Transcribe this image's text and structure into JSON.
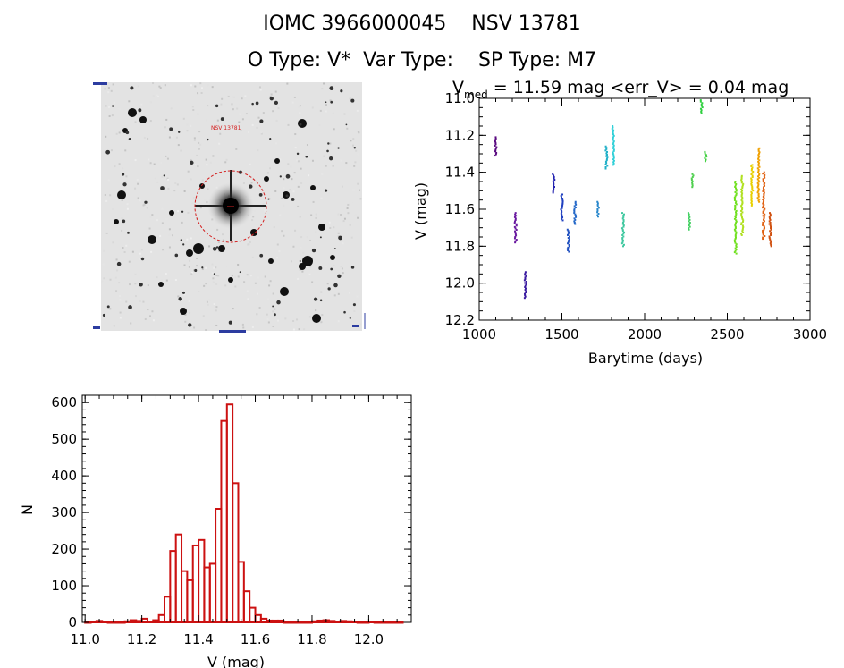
{
  "header": {
    "title": "IOMC 3966000045    NSV 13781",
    "subtitle": "O Type: V*  Var Type:    SP Type: M7"
  },
  "sky_image": {
    "target_label": "NSV 13781",
    "circle_color": "#d42020"
  },
  "chart_data": [
    {
      "type": "scatter",
      "title_prefix": "V",
      "title_subscript": "med",
      "title_rest": " = 11.59 mag <err_V> = 0.04 mag",
      "xlabel": "Barytime (days)",
      "ylabel": "V (mag)",
      "xlim": [
        1000,
        3000
      ],
      "ylim": [
        12.2,
        11.0
      ],
      "y_inverted": true,
      "x_ticks": [
        1000,
        1500,
        2000,
        2500,
        3000
      ],
      "x_tick_labels": [
        "1000",
        "1500",
        "2000",
        "2500",
        "3000"
      ],
      "y_ticks": [
        11.0,
        11.2,
        11.4,
        11.6,
        11.8,
        12.0,
        12.2
      ],
      "y_tick_labels": [
        "11.0",
        "11.2",
        "11.4",
        "11.6",
        "11.8",
        "12.0",
        "12.2"
      ],
      "grid": false,
      "color_encoding": "time (rainbow)",
      "groups": [
        {
          "x": 1100,
          "y_min": 11.21,
          "y_max": 11.31,
          "color": "#5a0a80"
        },
        {
          "x": 1220,
          "y_min": 11.62,
          "y_max": 11.78,
          "color": "#6a1aa0"
        },
        {
          "x": 1280,
          "y_min": 11.94,
          "y_max": 12.08,
          "color": "#3a1aa0"
        },
        {
          "x": 1450,
          "y_min": 11.41,
          "y_max": 11.51,
          "color": "#2222b0"
        },
        {
          "x": 1500,
          "y_min": 11.52,
          "y_max": 11.66,
          "color": "#2040c0"
        },
        {
          "x": 1540,
          "y_min": 11.71,
          "y_max": 11.83,
          "color": "#2050c0"
        },
        {
          "x": 1580,
          "y_min": 11.56,
          "y_max": 11.68,
          "color": "#2468c8"
        },
        {
          "x": 1720,
          "y_min": 11.56,
          "y_max": 11.64,
          "color": "#2a88cc"
        },
        {
          "x": 1770,
          "y_min": 11.26,
          "y_max": 11.38,
          "color": "#20b0c8"
        },
        {
          "x": 1810,
          "y_min": 11.15,
          "y_max": 11.36,
          "color": "#30d0d8"
        },
        {
          "x": 1870,
          "y_min": 11.62,
          "y_max": 11.8,
          "color": "#40c8a0"
        },
        {
          "x": 2270,
          "y_min": 11.62,
          "y_max": 11.71,
          "color": "#40d060"
        },
        {
          "x": 2290,
          "y_min": 11.41,
          "y_max": 11.48,
          "color": "#50d050"
        },
        {
          "x": 2345,
          "y_min": 11.01,
          "y_max": 11.08,
          "color": "#30d040"
        },
        {
          "x": 2370,
          "y_min": 11.29,
          "y_max": 11.34,
          "color": "#40d040"
        },
        {
          "x": 2550,
          "y_min": 11.45,
          "y_max": 11.84,
          "color": "#70e020"
        },
        {
          "x": 2590,
          "y_min": 11.42,
          "y_max": 11.74,
          "color": "#b0e020"
        },
        {
          "x": 2650,
          "y_min": 11.36,
          "y_max": 11.58,
          "color": "#e8d000"
        },
        {
          "x": 2690,
          "y_min": 11.27,
          "y_max": 11.56,
          "color": "#f0a000"
        },
        {
          "x": 2720,
          "y_min": 11.4,
          "y_max": 11.76,
          "color": "#e06010"
        },
        {
          "x": 2760,
          "y_min": 11.62,
          "y_max": 11.8,
          "color": "#d05010"
        }
      ]
    },
    {
      "type": "bar",
      "subtype": "histogram",
      "xlabel": "V (mag)",
      "ylabel": "N",
      "xlim": [
        10.99,
        12.15
      ],
      "ylim": [
        0,
        620
      ],
      "x_ticks": [
        11.0,
        11.2,
        11.4,
        11.6,
        11.8,
        12.0
      ],
      "x_tick_labels": [
        "11.0",
        "11.2",
        "11.4",
        "11.6",
        "11.8",
        "12.0"
      ],
      "y_ticks": [
        0,
        100,
        200,
        300,
        400,
        500,
        600
      ],
      "y_tick_labels": [
        "0",
        "100",
        "200",
        "300",
        "400",
        "500",
        "600"
      ],
      "bin_width": 0.02,
      "bar_color": "#cc1111",
      "bins": [
        11.0,
        11.02,
        11.04,
        11.06,
        11.08,
        11.1,
        11.12,
        11.14,
        11.16,
        11.18,
        11.2,
        11.22,
        11.24,
        11.26,
        11.28,
        11.3,
        11.32,
        11.34,
        11.36,
        11.38,
        11.4,
        11.42,
        11.44,
        11.46,
        11.48,
        11.5,
        11.52,
        11.54,
        11.56,
        11.58,
        11.6,
        11.62,
        11.64,
        11.66,
        11.68,
        11.7,
        11.72,
        11.74,
        11.76,
        11.78,
        11.8,
        11.82,
        11.84,
        11.86,
        11.88,
        11.9,
        11.92,
        11.94,
        11.96,
        11.98,
        12.0,
        12.02,
        12.04,
        12.06,
        12.08,
        12.1
      ],
      "values": [
        0,
        2,
        4,
        2,
        0,
        0,
        0,
        3,
        6,
        4,
        10,
        2,
        6,
        20,
        70,
        195,
        240,
        140,
        115,
        210,
        225,
        150,
        160,
        310,
        550,
        595,
        380,
        165,
        85,
        40,
        20,
        10,
        5,
        5,
        5,
        0,
        0,
        0,
        0,
        0,
        3,
        5,
        6,
        4,
        2,
        4,
        3,
        2,
        0,
        0,
        2,
        0,
        0,
        0,
        0,
        0
      ]
    }
  ]
}
